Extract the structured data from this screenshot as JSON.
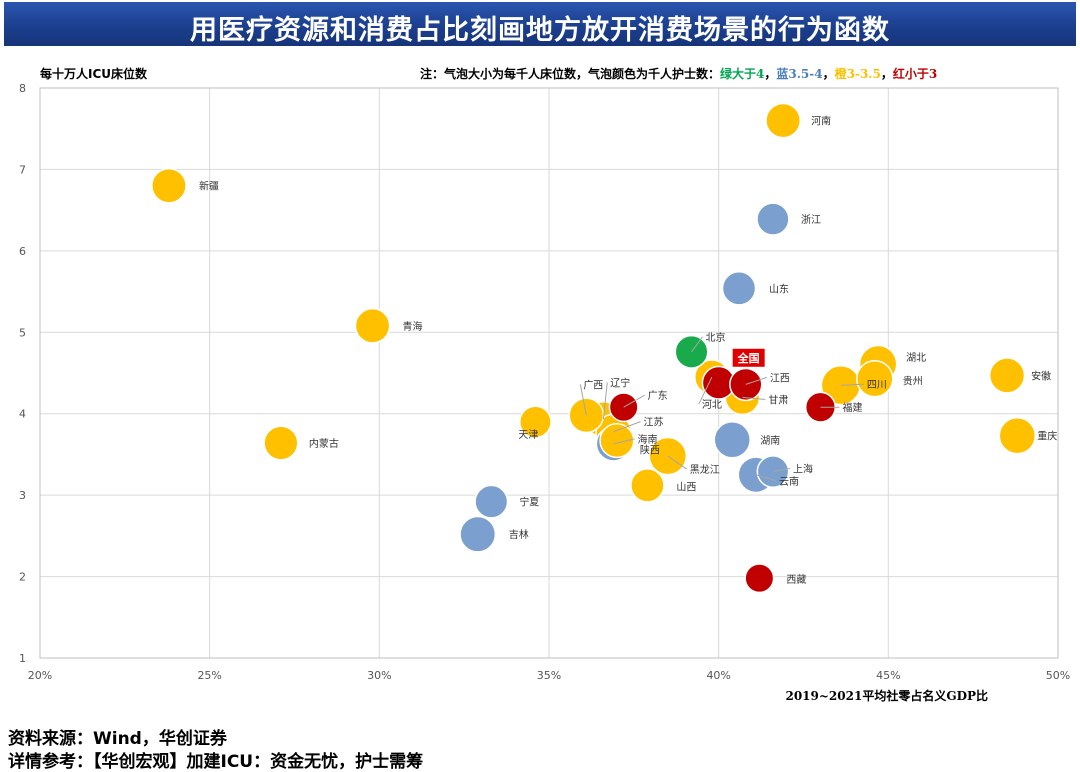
{
  "header": {
    "title": "用医疗资源和消费占比刻画地方放开消费场景的行为函数"
  },
  "chart_data": {
    "type": "scatter",
    "title": "用医疗资源和消费占比刻画地方放开消费场景的行为函数",
    "ylabel": "每十万人ICU床位数",
    "xlabel": "2019~2021平均社零占名义GDP比",
    "xlim": [
      0.2,
      0.5
    ],
    "ylim": [
      1,
      8
    ],
    "x_ticks": [
      0.2,
      0.25,
      0.3,
      0.35,
      0.4,
      0.45,
      0.5
    ],
    "x_tick_labels": [
      "20%",
      "25%",
      "30%",
      "35%",
      "40%",
      "45%",
      "50%"
    ],
    "y_ticks": [
      1,
      2,
      3,
      4,
      5,
      6,
      7,
      8
    ],
    "y_tick_labels": [
      "1",
      "2",
      "3",
      "4",
      "5",
      "6",
      "7",
      "8"
    ],
    "grid": true,
    "note": {
      "prefix": "注：气泡大小为每千人床位数，气泡颜色为千人护士数：",
      "items": [
        {
          "label": "绿大于4",
          "color": "#00a650"
        },
        {
          "label": "蓝3.5-4",
          "color": "#4a7ebb"
        },
        {
          "label": "橙3-3.5",
          "color": "#ffc000"
        },
        {
          "label": "红小于3",
          "color": "#c00000"
        }
      ],
      "separator": "，"
    },
    "colors": {
      "green": "#19aa4c",
      "blue": "#7ba0cf",
      "orange": "#ffc000",
      "red": "#c00000"
    },
    "national_badge": "全国",
    "points": [
      {
        "name": "河南",
        "x": 0.419,
        "y": 7.6,
        "color": "orange",
        "size": 5.9
      },
      {
        "name": "新疆",
        "x": 0.238,
        "y": 6.8,
        "color": "orange",
        "size": 5.9
      },
      {
        "name": "浙江",
        "x": 0.416,
        "y": 6.39,
        "color": "blue",
        "size": 5.5
      },
      {
        "name": "山东",
        "x": 0.406,
        "y": 5.54,
        "color": "blue",
        "size": 5.7
      },
      {
        "name": "青海",
        "x": 0.298,
        "y": 5.08,
        "color": "orange",
        "size": 5.9
      },
      {
        "name": "北京",
        "x": 0.392,
        "y": 4.76,
        "color": "green",
        "size": 5.6
      },
      {
        "name": "湖北",
        "x": 0.447,
        "y": 4.61,
        "color": "orange",
        "size": 6.4
      },
      {
        "name": "安徽",
        "x": 0.485,
        "y": 4.47,
        "color": "orange",
        "size": 6.0
      },
      {
        "name": "河北",
        "x": 0.398,
        "y": 4.45,
        "color": "orange",
        "size": 5.9
      },
      {
        "name": "江西",
        "x": 0.408,
        "y": 4.36,
        "color": "red",
        "size": 5.5
      },
      {
        "name": "全国",
        "x": 0.4,
        "y": 4.38,
        "color": "red",
        "size": 5.6
      },
      {
        "name": "贵州",
        "x": 0.446,
        "y": 4.43,
        "color": "orange",
        "size": 6.2
      },
      {
        "name": "四川",
        "x": 0.436,
        "y": 4.35,
        "color": "orange",
        "size": 6.7
      },
      {
        "name": "甘肃",
        "x": 0.407,
        "y": 4.2,
        "color": "orange",
        "size": 5.9
      },
      {
        "name": "广东",
        "x": 0.372,
        "y": 4.08,
        "color": "red",
        "size": 4.9
      },
      {
        "name": "福建",
        "x": 0.43,
        "y": 4.08,
        "color": "red",
        "size": 5.1
      },
      {
        "name": "广西",
        "x": 0.361,
        "y": 3.98,
        "color": "orange",
        "size": 5.9
      },
      {
        "name": "辽宁",
        "x": 0.366,
        "y": 3.93,
        "color": "orange",
        "size": 6.1
      },
      {
        "name": "天津",
        "x": 0.346,
        "y": 3.9,
        "color": "orange",
        "size": 5.4
      },
      {
        "name": "江苏",
        "x": 0.369,
        "y": 3.78,
        "color": "orange",
        "size": 6.0
      },
      {
        "name": "重庆",
        "x": 0.488,
        "y": 3.73,
        "color": "orange",
        "size": 6.2
      },
      {
        "name": "湖南",
        "x": 0.404,
        "y": 3.68,
        "color": "blue",
        "size": 6.2
      },
      {
        "name": "内蒙古",
        "x": 0.271,
        "y": 3.64,
        "color": "orange",
        "size": 5.8
      },
      {
        "name": "海南",
        "x": 0.369,
        "y": 3.63,
        "color": "blue",
        "size": 5.9
      },
      {
        "name": "陕西",
        "x": 0.37,
        "y": 3.67,
        "color": "orange",
        "size": 5.8
      },
      {
        "name": "黑龙江",
        "x": 0.385,
        "y": 3.48,
        "color": "orange",
        "size": 6.4
      },
      {
        "name": "上海",
        "x": 0.416,
        "y": 3.29,
        "color": "blue",
        "size": 5.4
      },
      {
        "name": "云南",
        "x": 0.411,
        "y": 3.25,
        "color": "blue",
        "size": 6.1
      },
      {
        "name": "山西",
        "x": 0.379,
        "y": 3.12,
        "color": "orange",
        "size": 5.7
      },
      {
        "name": "宁夏",
        "x": 0.333,
        "y": 2.92,
        "color": "blue",
        "size": 5.6
      },
      {
        "name": "吉林",
        "x": 0.329,
        "y": 2.52,
        "color": "blue",
        "size": 6.1
      },
      {
        "name": "西藏",
        "x": 0.412,
        "y": 1.98,
        "color": "red",
        "size": 4.9
      }
    ]
  },
  "footer": {
    "source": "资料来源：Wind，华创证券",
    "reference": "详情参考：【华创宏观】加建ICU：资金无忧，护士需筹"
  }
}
